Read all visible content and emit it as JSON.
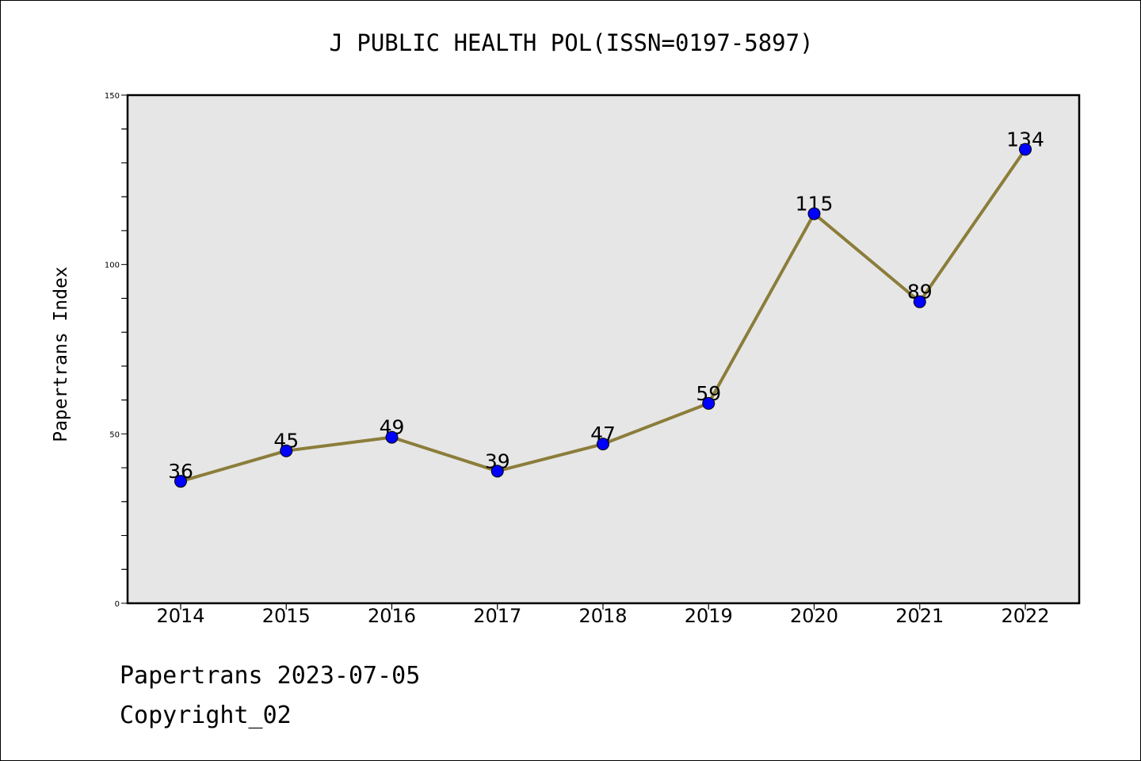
{
  "chart_data": {
    "type": "line",
    "title": "J PUBLIC HEALTH POL(ISSN=0197-5897)",
    "xlabel": "",
    "ylabel": "Papertrans Index",
    "categories": [
      "2014",
      "2015",
      "2016",
      "2017",
      "2018",
      "2019",
      "2020",
      "2021",
      "2022"
    ],
    "series": [
      {
        "values": [
          36,
          45,
          49,
          39,
          47,
          59,
          115,
          89,
          134
        ]
      }
    ],
    "data_labels": [
      "36",
      "45",
      "49",
      "39",
      "47",
      "59",
      "115",
      "89",
      "134"
    ],
    "ylim": [
      0,
      150
    ],
    "y_ticks": [
      "0",
      "50",
      "100",
      "150"
    ],
    "grid": false,
    "legend": "none",
    "colors": {
      "line": "#8B7D3A",
      "marker": "#0000FF",
      "plot_background": "#E6E6E6",
      "axes": "#000000"
    }
  },
  "footer": {
    "line1": "Papertrans 2023-07-05",
    "line2": "Copyright_02"
  }
}
